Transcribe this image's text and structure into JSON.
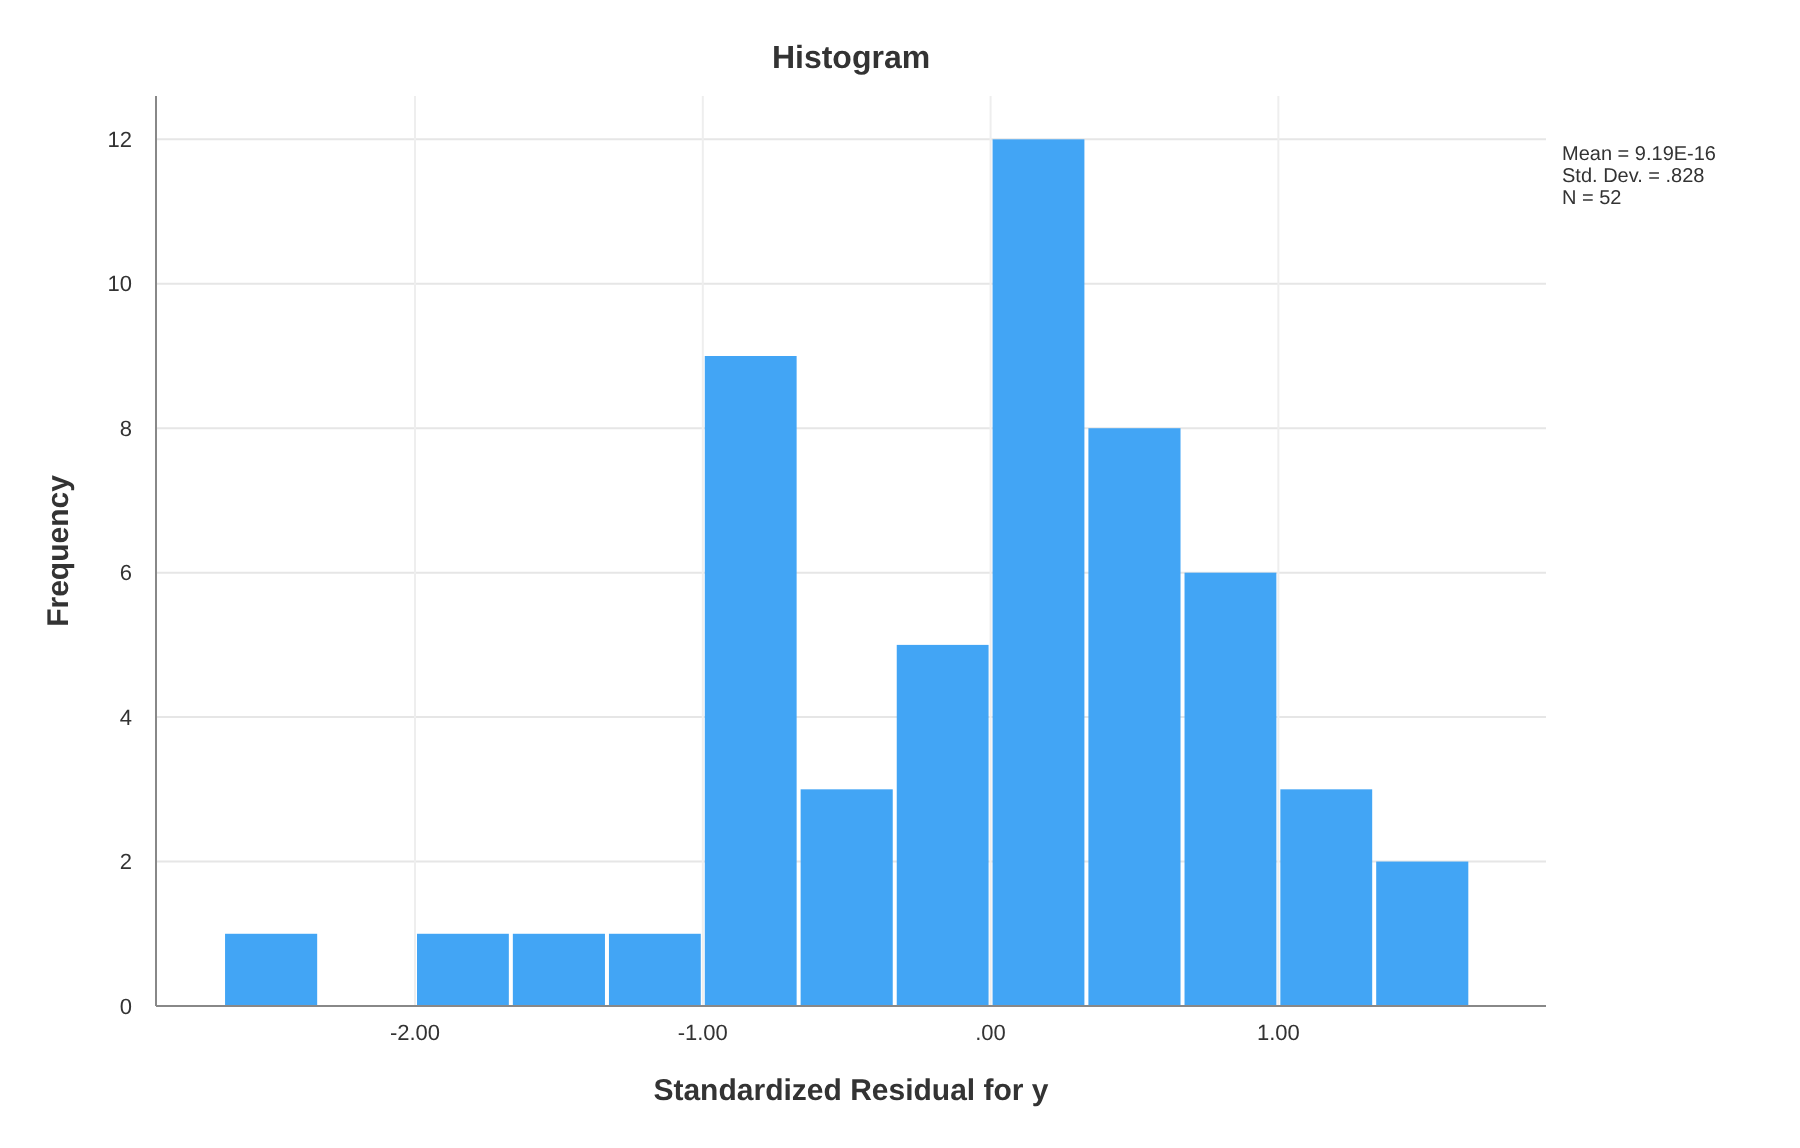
{
  "chart_data": {
    "type": "histogram",
    "title": "Histogram",
    "xlabel": "Standardized Residual for y",
    "ylabel": "Frequency",
    "bins": [
      -2.667,
      -2.333,
      -2,
      -1.667,
      -1.333,
      -1,
      -0.667,
      -0.333,
      0,
      0.333,
      0.667,
      1,
      1.333,
      1.667
    ],
    "values": [
      1,
      0,
      1,
      1,
      1,
      9,
      3,
      5,
      12,
      8,
      6,
      3,
      2
    ],
    "color": "#42a5f5",
    "xlim": [
      -2.9,
      1.93
    ],
    "xticks": [
      {
        "value": -2,
        "label": "-2.00"
      },
      {
        "value": -1,
        "label": "-1.00"
      },
      {
        "value": 0,
        "label": ".00"
      },
      {
        "value": 1,
        "label": "1.00"
      }
    ],
    "ylim": [
      0,
      12.6
    ],
    "yticks": [
      0,
      2,
      4,
      6,
      8,
      10,
      12
    ],
    "grid": true,
    "annotations": [
      "Mean = 9.19E-16",
      "Std. Dev. = .828",
      "N = 52"
    ]
  }
}
